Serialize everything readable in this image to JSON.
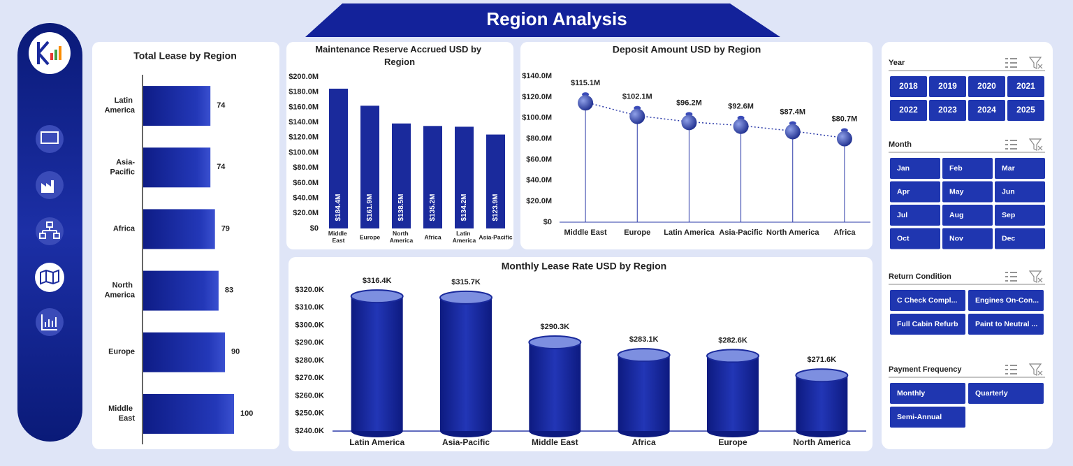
{
  "title": "Region Analysis",
  "chart_data": [
    {
      "type": "bar",
      "orientation": "horizontal",
      "title": "Total Lease by Region",
      "color": "#1a2a9c",
      "categories": [
        "Latin America",
        "Asia-Pacific",
        "Africa",
        "North America",
        "Europe",
        "Middle East"
      ],
      "values": [
        74,
        74,
        79,
        83,
        90,
        100
      ]
    },
    {
      "type": "bar",
      "title": "Maintenance Reserve Accrued USD by Region",
      "color": "#1a2a9c",
      "categories": [
        "Middle East",
        "Europe",
        "North America",
        "Africa",
        "Latin America",
        "Asia-Pacific"
      ],
      "values": [
        184400000,
        161900000,
        138500000,
        135200000,
        134200000,
        123900000
      ],
      "value_labels": [
        "$184.4M",
        "$161.9M",
        "$138.5M",
        "$135.2M",
        "$134.2M",
        "$123.9M"
      ],
      "ylim": [
        0,
        200000000
      ],
      "yticks": [
        {
          "value": 0,
          "label": "$0"
        },
        {
          "value": 20000000,
          "label": "$20.0M"
        },
        {
          "value": 40000000,
          "label": "$40.0M"
        },
        {
          "value": 60000000,
          "label": "$60.0M"
        },
        {
          "value": 80000000,
          "label": "$80.0M"
        },
        {
          "value": 100000000,
          "label": "$100.0M"
        },
        {
          "value": 120000000,
          "label": "$120.0M"
        },
        {
          "value": 140000000,
          "label": "$140.0M"
        },
        {
          "value": 160000000,
          "label": "$160.0M"
        },
        {
          "value": 180000000,
          "label": "$180.0M"
        },
        {
          "value": 200000000,
          "label": "$200.0M"
        }
      ]
    },
    {
      "type": "line",
      "title": "Deposit Amount USD by Region",
      "color": "#2b3aa8",
      "categories": [
        "Middle East",
        "Europe",
        "Latin America",
        "Asia-Pacific",
        "North America",
        "Africa"
      ],
      "values": [
        115100000,
        102100000,
        96200000,
        92600000,
        87400000,
        80700000
      ],
      "value_labels": [
        "$115.1M",
        "$102.1M",
        "$96.2M",
        "$92.6M",
        "$87.4M",
        "$80.7M"
      ],
      "ylim": [
        0,
        140000000
      ],
      "yticks": [
        {
          "value": 0,
          "label": "$0"
        },
        {
          "value": 20000000,
          "label": "$20.0M"
        },
        {
          "value": 40000000,
          "label": "$40.0M"
        },
        {
          "value": 60000000,
          "label": "$60.0M"
        },
        {
          "value": 80000000,
          "label": "$80.0M"
        },
        {
          "value": 100000000,
          "label": "$100.0M"
        },
        {
          "value": 120000000,
          "label": "$120.0M"
        },
        {
          "value": 140000000,
          "label": "$140.0M"
        }
      ]
    },
    {
      "type": "bar",
      "style": "cylinder",
      "title": "Monthly Lease Rate USD by Region",
      "color": "#1a2a9c",
      "categories": [
        "Latin America",
        "Asia-Pacific",
        "Middle East",
        "Africa",
        "Europe",
        "North America"
      ],
      "values": [
        316400,
        315700,
        290300,
        283100,
        282600,
        271600
      ],
      "value_labels": [
        "$316.4K",
        "$315.7K",
        "$290.3K",
        "$283.1K",
        "$282.6K",
        "$271.6K"
      ],
      "ylim": [
        240000,
        320000
      ],
      "yticks": [
        {
          "value": 240000,
          "label": "$240.0K"
        },
        {
          "value": 250000,
          "label": "$250.0K"
        },
        {
          "value": 260000,
          "label": "$260.0K"
        },
        {
          "value": 270000,
          "label": "$270.0K"
        },
        {
          "value": 280000,
          "label": "$280.0K"
        },
        {
          "value": 290000,
          "label": "$290.0K"
        },
        {
          "value": 300000,
          "label": "$300.0K"
        },
        {
          "value": 310000,
          "label": "$310.0K"
        },
        {
          "value": 320000,
          "label": "$320.0K"
        }
      ]
    }
  ],
  "slicers": [
    {
      "title": "Year",
      "items": [
        "2018",
        "2019",
        "2020",
        "2021",
        "2022",
        "2023",
        "2024",
        "2025"
      ]
    },
    {
      "title": "Month",
      "items": [
        "Jan",
        "Feb",
        "Mar",
        "Apr",
        "May",
        "Jun",
        "Jul",
        "Aug",
        "Sep",
        "Oct",
        "Nov",
        "Dec"
      ]
    },
    {
      "title": "Return Condition",
      "items": [
        "C Check Compl...",
        "Engines On-Con...",
        "Full Cabin Refurb",
        "Paint to Neutral ..."
      ]
    },
    {
      "title": "Payment Frequency",
      "items": [
        "Monthly",
        "Quarterly",
        "Semi-Annual"
      ]
    }
  ]
}
